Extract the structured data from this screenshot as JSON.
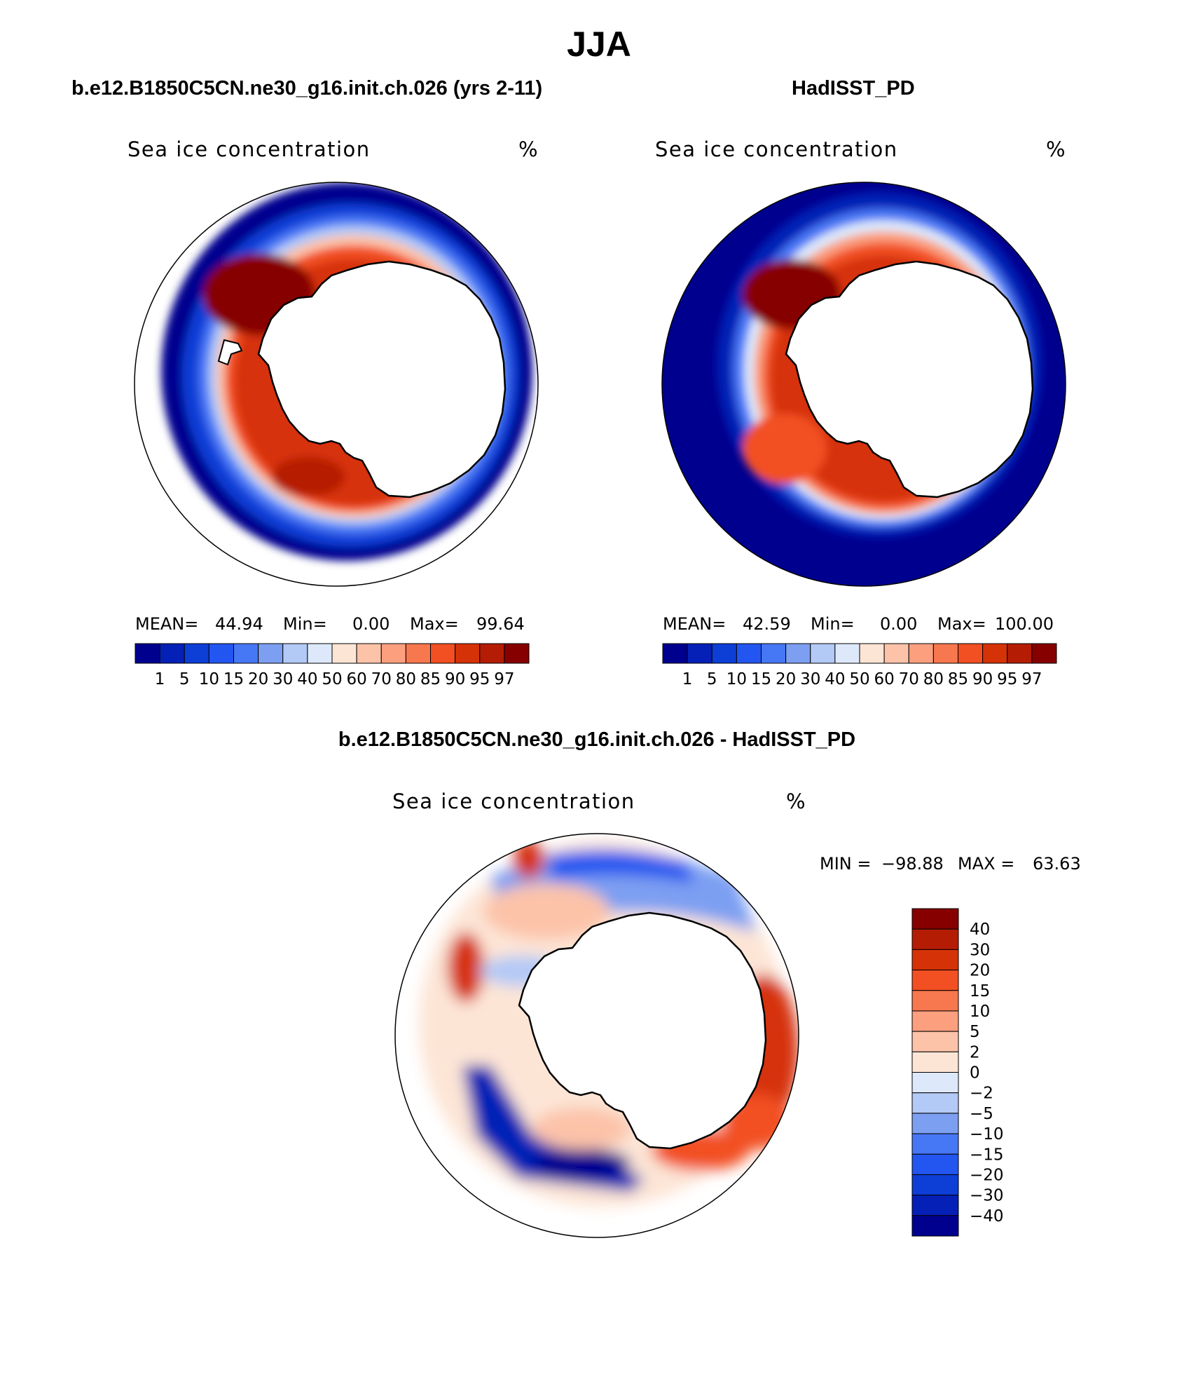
{
  "page_title": "JJA",
  "panels": [
    {
      "case_title": "b.e12.B1850C5CN.ne30_g16.init.ch.026 (yrs 2-11)",
      "field_label": "Sea ice concentration",
      "units": "%",
      "stats": {
        "mean_label": "MEAN=",
        "mean": "44.94",
        "min_label": "Min=",
        "min": "0.00",
        "max_label": "Max=",
        "max": "99.64"
      },
      "colorbar_ticks": [
        "1",
        "5",
        "10",
        "15",
        "20",
        "30",
        "40",
        "50",
        "60",
        "70",
        "80",
        "85",
        "90",
        "95",
        "97"
      ]
    },
    {
      "case_title": "HadISST_PD",
      "field_label": "Sea ice concentration",
      "units": "%",
      "stats": {
        "mean_label": "MEAN=",
        "mean": "42.59",
        "min_label": "Min=",
        "min": "0.00",
        "max_label": "Max=",
        "max": "100.00"
      },
      "colorbar_ticks": [
        "1",
        "5",
        "10",
        "15",
        "20",
        "30",
        "40",
        "50",
        "60",
        "70",
        "80",
        "85",
        "90",
        "95",
        "97"
      ]
    }
  ],
  "diff_panel": {
    "title": "b.e12.B1850C5CN.ne30_g16.init.ch.026 - HadISST_PD",
    "field_label": "Sea ice concentration",
    "units": "%",
    "minmax": {
      "min_label": "MIN =",
      "min": "−98.88",
      "max_label": "MAX =",
      "max": "63.63"
    },
    "colorbar_ticks": [
      "40",
      "30",
      "20",
      "15",
      "10",
      "5",
      "2",
      "0",
      "−2",
      "−5",
      "−10",
      "−15",
      "−20",
      "−30",
      "−40"
    ]
  },
  "colors": {
    "seq_colormap": [
      "#00008f",
      "#0520b6",
      "#0d3ed6",
      "#2356f0",
      "#4677f5",
      "#7d9ff2",
      "#b3c9f6",
      "#dde9fb",
      "#fde5d6",
      "#fcc3a9",
      "#fb9f7e",
      "#f7774e",
      "#f24f22",
      "#d63208",
      "#b51c04",
      "#870000"
    ],
    "div_colormap_top_to_bottom": [
      "#870000",
      "#b51c04",
      "#d63208",
      "#f24f22",
      "#f7774e",
      "#fb9f7e",
      "#fcc3a9",
      "#fde5d6",
      "#dde9fb",
      "#b3c9f6",
      "#7d9ff2",
      "#4677f5",
      "#2356f0",
      "#0d3ed6",
      "#0520b6",
      "#00008f"
    ],
    "land": "#ffffff",
    "coast": "#000000"
  }
}
